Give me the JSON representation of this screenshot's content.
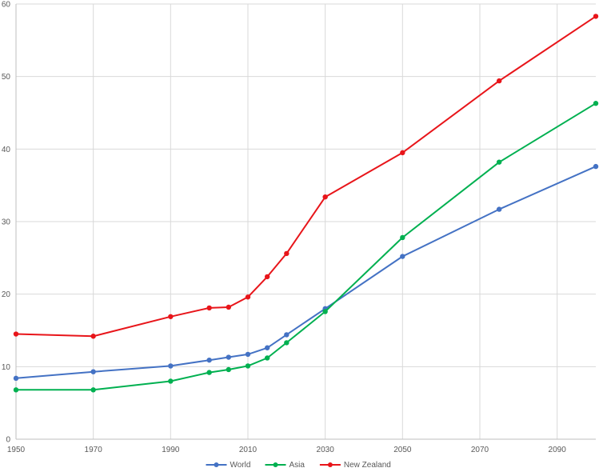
{
  "chart_data": {
    "type": "line",
    "title": "",
    "xlabel": "",
    "ylabel": "",
    "xlim": [
      1950,
      2100
    ],
    "ylim": [
      0,
      60
    ],
    "x_ticks": [
      1950,
      1970,
      1990,
      2010,
      2030,
      2050,
      2070,
      2090
    ],
    "y_ticks": [
      0,
      10,
      20,
      30,
      40,
      50,
      60
    ],
    "grid": true,
    "legend_position": "bottom",
    "series": [
      {
        "name": "World",
        "color": "#4472C4",
        "points": [
          [
            1950,
            8.4
          ],
          [
            1970,
            9.3
          ],
          [
            1990,
            10.1
          ],
          [
            2000,
            10.9
          ],
          [
            2005,
            11.3
          ],
          [
            2010,
            11.7
          ],
          [
            2015,
            12.6
          ],
          [
            2020,
            14.4
          ],
          [
            2030,
            18.0
          ],
          [
            2050,
            25.2
          ],
          [
            2075,
            31.7
          ],
          [
            2100,
            37.6
          ]
        ]
      },
      {
        "name": "Asia",
        "color": "#00B050",
        "points": [
          [
            1950,
            6.8
          ],
          [
            1970,
            6.8
          ],
          [
            1990,
            8.0
          ],
          [
            2000,
            9.2
          ],
          [
            2005,
            9.6
          ],
          [
            2010,
            10.1
          ],
          [
            2015,
            11.2
          ],
          [
            2020,
            13.3
          ],
          [
            2030,
            17.6
          ],
          [
            2050,
            27.8
          ],
          [
            2075,
            38.2
          ],
          [
            2100,
            46.3
          ]
        ]
      },
      {
        "name": "New Zealand",
        "color": "#E8151A",
        "points": [
          [
            1950,
            14.5
          ],
          [
            1970,
            14.2
          ],
          [
            1990,
            16.9
          ],
          [
            2000,
            18.1
          ],
          [
            2005,
            18.2
          ],
          [
            2010,
            19.6
          ],
          [
            2015,
            22.4
          ],
          [
            2020,
            25.6
          ],
          [
            2030,
            33.4
          ],
          [
            2050,
            39.5
          ],
          [
            2075,
            49.4
          ],
          [
            2100,
            58.3
          ]
        ]
      }
    ]
  }
}
